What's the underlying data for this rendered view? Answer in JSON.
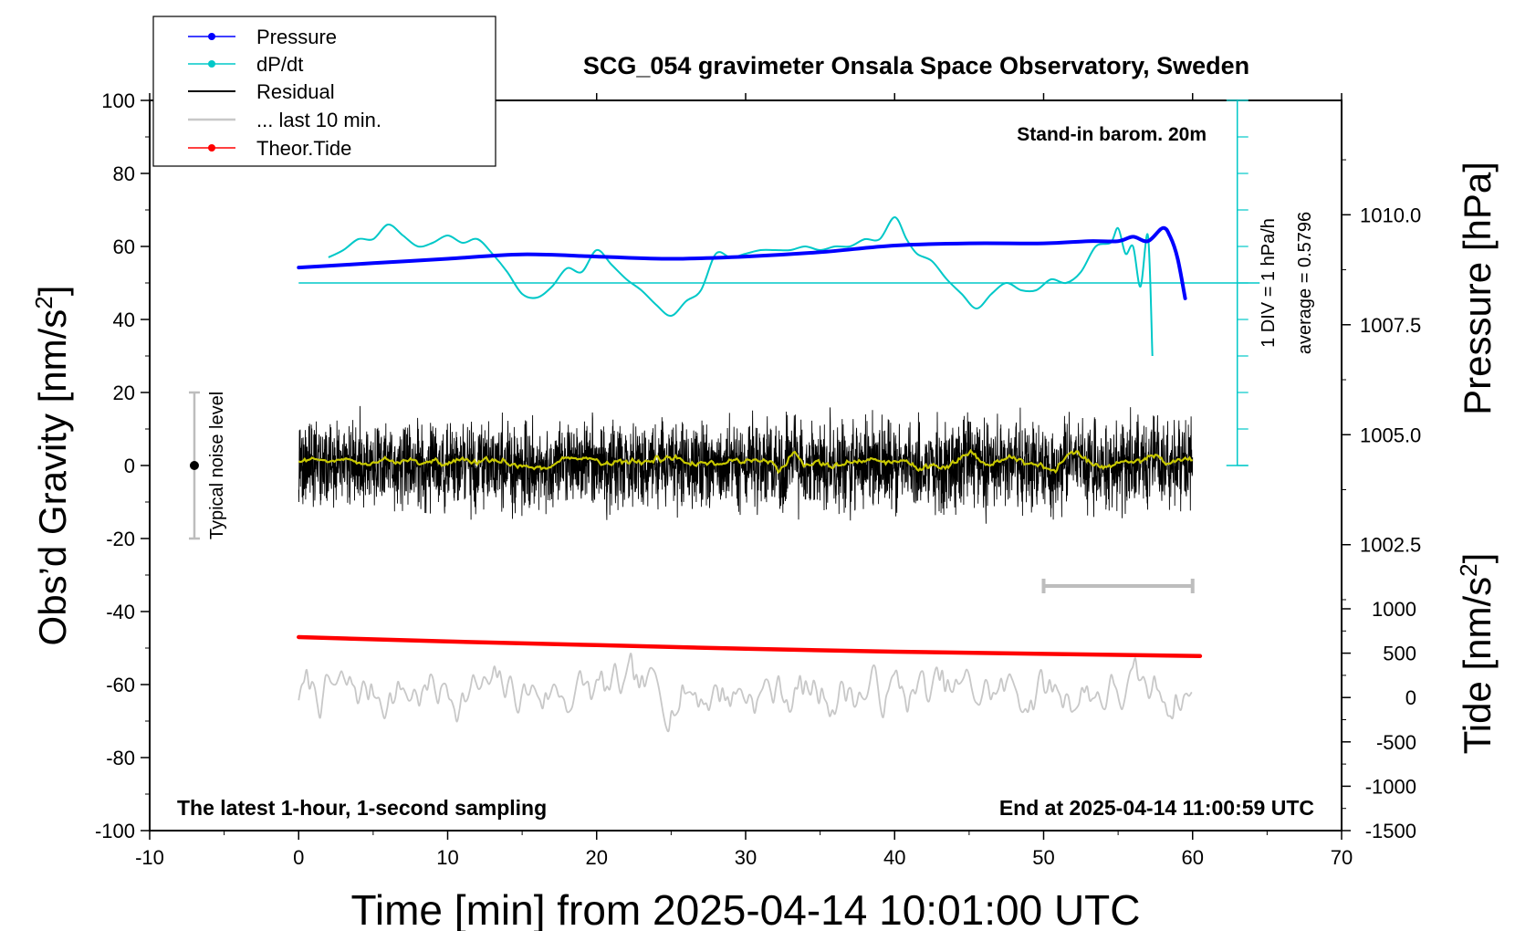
{
  "chart_data": {
    "type": "line",
    "title": "SCG_054 gravimeter Onsala Space Observatory, Sweden",
    "xlabel": "Time [min] from 2025-04-14 10:01:00 UTC",
    "ylabel_left_main": "Obs’d Gravity [nm/s",
    "ylabel_left_sup": "2",
    "ylabel_left_close": "]",
    "ylabel_right_pressure": "Pressure [hPa]",
    "ylabel_right_tide_main": "Tide [nm/s",
    "ylabel_right_tide_sup": "2",
    "ylabel_right_tide_close": "]",
    "xlim": [
      -10,
      70
    ],
    "ylim": [
      -100,
      100
    ],
    "x_ticks": [
      "-10",
      "0",
      "10",
      "20",
      "30",
      "40",
      "50",
      "60",
      "70"
    ],
    "y_ticks": [
      "-100",
      "-80",
      "-60",
      "-40",
      "-20",
      "0",
      "20",
      "40",
      "60",
      "80",
      "100"
    ],
    "pressure_ticks": [
      "1002.5",
      "1005.0",
      "1007.5",
      "1010.0"
    ],
    "tide_ticks": [
      "-1500",
      "-1000",
      "-500",
      "0",
      "500",
      "1000"
    ],
    "pressure_range": [
      996,
      1012.6
    ],
    "tide_range": [
      -1500,
      1000
    ],
    "legend": [
      "Pressure",
      "dP/dt",
      "Residual",
      "... last 10 min.",
      "Theor.Tide"
    ],
    "annotations": {
      "stand_in": "Stand-in barom. 20m",
      "div": "1 DIV = 1 hPa/h",
      "average": "average = 0.5796",
      "noise": "Typical noise level",
      "latest": "The latest 1-hour, 1-second sampling",
      "end_at": "End at 2025-04-14 11:00:59 UTC"
    },
    "noise_bar": {
      "x": -7,
      "y": 0,
      "ymin": -20,
      "ymax": 20
    },
    "ten_min_bar": {
      "x0": 50,
      "x1": 60,
      "y": -33
    },
    "series": [
      {
        "name": "Pressure",
        "unit": "hPa",
        "color": "#0000ff",
        "x": [
          0,
          5,
          10,
          15,
          20,
          25,
          30,
          35,
          40,
          45,
          50,
          53,
          55,
          56,
          57,
          58,
          58.5,
          59,
          59.5
        ],
        "values": [
          1008.8,
          1008.9,
          1009.0,
          1009.1,
          1009.05,
          1009.0,
          1009.05,
          1009.15,
          1009.3,
          1009.35,
          1009.35,
          1009.4,
          1009.4,
          1009.5,
          1009.4,
          1009.7,
          1009.5,
          1009.0,
          1008.1
        ]
      },
      {
        "name": "dP/dt",
        "unit": "gravity axis",
        "color": "#00c8c8",
        "x": [
          2,
          3,
          4,
          5,
          6,
          7,
          8,
          9,
          10,
          11,
          12,
          13,
          14,
          15,
          16,
          17,
          18,
          19,
          20,
          21,
          22,
          23,
          24,
          25,
          26,
          27,
          28,
          29,
          30,
          31,
          32,
          33,
          34,
          35,
          36,
          37,
          38,
          39,
          40,
          40.8,
          41.5,
          42.5,
          43.5,
          44.5,
          45.5,
          46.5,
          47.5,
          48.5,
          49.5,
          50.5,
          51.5,
          52.5,
          53.5,
          54.5,
          55,
          55.5,
          56,
          56.5,
          57,
          57.3
        ],
        "values": [
          57,
          59,
          62,
          62,
          66,
          63,
          60,
          61,
          63,
          61,
          62,
          58,
          53,
          47,
          46,
          49,
          54,
          53,
          59,
          55,
          51,
          48,
          44,
          41,
          45,
          48,
          58,
          57,
          58,
          59,
          59,
          59,
          60,
          59,
          60,
          60,
          62,
          62,
          68,
          62,
          58,
          56,
          51,
          47,
          43,
          47,
          50,
          48,
          48,
          51,
          50,
          53,
          60,
          61,
          65,
          58,
          60,
          49,
          63,
          30
        ]
      },
      {
        "name": "Residual",
        "unit": "nm/s2",
        "color": "#000000",
        "x_range": [
          0,
          60
        ],
        "mean": 0,
        "amplitude": 12
      },
      {
        "name": "... last 10 min.",
        "unit": "nm/s2",
        "color": "#c8c8c8",
        "x_range": [
          0,
          60
        ],
        "mean": -62,
        "amplitude": 16
      },
      {
        "name": "Theor.Tide",
        "unit": "nm/s2",
        "color": "#ff0000",
        "x": [
          0,
          10,
          20,
          30,
          40,
          50,
          60.5
        ],
        "values": [
          -47,
          -48.2,
          -49.2,
          -50.2,
          -51,
          -51.6,
          -52.2
        ]
      }
    ]
  }
}
